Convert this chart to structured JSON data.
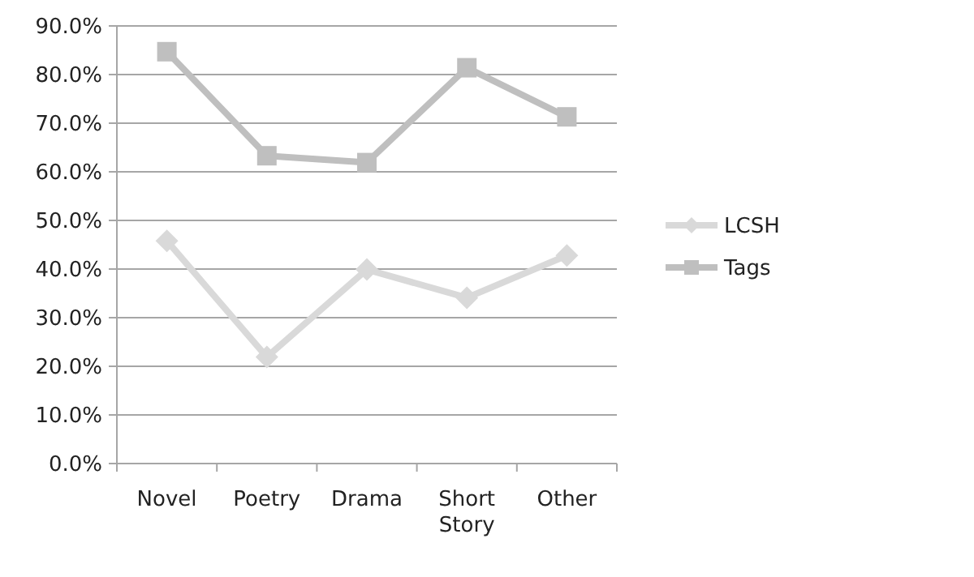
{
  "chart_data": {
    "type": "line",
    "categories": [
      "Novel",
      "Poetry",
      "Drama",
      "Short Story",
      "Other"
    ],
    "series": [
      {
        "name": "LCSH",
        "color": "#d9d9d9",
        "marker": "diamond",
        "values": [
          45.8,
          21.9,
          39.9,
          34.1,
          42.8
        ]
      },
      {
        "name": "Tags",
        "color": "#bfbfbf",
        "marker": "square",
        "values": [
          84.7,
          63.3,
          61.9,
          81.4,
          71.3
        ]
      }
    ],
    "ylim": [
      0,
      90
    ],
    "yticks": [
      {
        "value": 0,
        "label": "0.0%"
      },
      {
        "value": 10,
        "label": "10.0%"
      },
      {
        "value": 20,
        "label": "20.0%"
      },
      {
        "value": 30,
        "label": "30.0%"
      },
      {
        "value": 40,
        "label": "40.0%"
      },
      {
        "value": 50,
        "label": "50.0%"
      },
      {
        "value": 60,
        "label": "60.0%"
      },
      {
        "value": 70,
        "label": "70.0%"
      },
      {
        "value": 80,
        "label": "80.0%"
      },
      {
        "value": 90,
        "label": "90.0%"
      }
    ],
    "grid": "y",
    "legend": "right",
    "line_style": "solid"
  }
}
